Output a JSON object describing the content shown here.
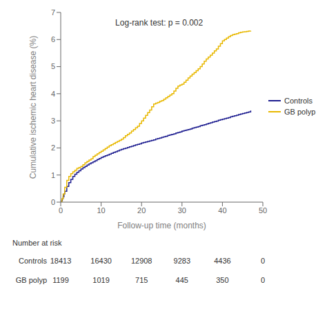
{
  "chart_data": {
    "type": "step",
    "annotation": "Log-rank test: p = 0.002",
    "xlabel": "Follow-up time (months)",
    "ylabel": "Cumulative ischemic heart disease (%)",
    "xlim": [
      0,
      50
    ],
    "ylim": [
      0,
      7
    ],
    "xticks": [
      0,
      10,
      20,
      30,
      40,
      50
    ],
    "yticks": [
      0,
      1,
      2,
      3,
      4,
      5,
      6,
      7
    ],
    "grid": false,
    "legend": "right",
    "series": [
      {
        "name": "Controls",
        "color": "#1c1c8f",
        "x": [
          0,
          0.2,
          0.4,
          0.6,
          0.8,
          1.0,
          1.5,
          2.0,
          2.5,
          3.0,
          3.5,
          4.0,
          4.5,
          5.0,
          5.5,
          6.0,
          6.5,
          7.0,
          7.5,
          8.0,
          8.5,
          9.0,
          9.5,
          10.0,
          10.5,
          11.0,
          11.5,
          12.0,
          12.5,
          13.0,
          13.5,
          14.0,
          14.5,
          15.0,
          15.5,
          16.0,
          16.5,
          17.0,
          17.5,
          18.0,
          18.5,
          19.0,
          19.5,
          20.0,
          20.5,
          21.0,
          21.5,
          22.0,
          22.5,
          23.0,
          23.5,
          24.0,
          24.5,
          25.0,
          25.5,
          26.0,
          26.5,
          27.0,
          27.5,
          28.0,
          28.5,
          29.0,
          29.5,
          30.0,
          30.5,
          31.0,
          31.5,
          32.0,
          32.5,
          33.0,
          33.5,
          34.0,
          34.5,
          35.0,
          35.5,
          36.0,
          36.5,
          37.0,
          37.5,
          38.0,
          38.5,
          39.0,
          39.5,
          40.0,
          40.5,
          41.0,
          41.5,
          42.0,
          42.5,
          43.0,
          43.5,
          44.0,
          44.5,
          45.0,
          45.5,
          46.0,
          46.5,
          47.0
        ],
        "values": [
          0,
          0.05,
          0.12,
          0.2,
          0.3,
          0.4,
          0.58,
          0.72,
          0.84,
          0.95,
          1.03,
          1.1,
          1.16,
          1.22,
          1.27,
          1.32,
          1.37,
          1.41,
          1.45,
          1.49,
          1.53,
          1.57,
          1.61,
          1.65,
          1.68,
          1.71,
          1.74,
          1.77,
          1.8,
          1.83,
          1.86,
          1.89,
          1.92,
          1.95,
          1.97,
          1.99,
          2.02,
          2.04,
          2.06,
          2.09,
          2.11,
          2.13,
          2.15,
          2.18,
          2.2,
          2.22,
          2.24,
          2.26,
          2.28,
          2.3,
          2.33,
          2.35,
          2.37,
          2.39,
          2.41,
          2.43,
          2.46,
          2.48,
          2.5,
          2.52,
          2.55,
          2.57,
          2.59,
          2.62,
          2.64,
          2.66,
          2.68,
          2.7,
          2.73,
          2.75,
          2.77,
          2.79,
          2.82,
          2.84,
          2.86,
          2.88,
          2.91,
          2.93,
          2.95,
          2.97,
          2.99,
          3.02,
          3.04,
          3.06,
          3.08,
          3.1,
          3.12,
          3.15,
          3.17,
          3.19,
          3.21,
          3.23,
          3.25,
          3.27,
          3.29,
          3.31,
          3.33,
          3.38
        ]
      },
      {
        "name": "GB polyp",
        "color": "#e8b800",
        "x": [
          0,
          0.3,
          0.6,
          1.0,
          1.5,
          2.0,
          2.5,
          3.0,
          3.5,
          4.0,
          4.5,
          5.0,
          5.5,
          6.0,
          6.5,
          7.0,
          7.5,
          8.0,
          8.5,
          9.0,
          9.5,
          10.0,
          10.5,
          11.0,
          11.5,
          12.0,
          12.5,
          13.0,
          13.5,
          14.0,
          14.5,
          15.0,
          15.5,
          16.0,
          16.5,
          17.0,
          17.5,
          18.0,
          18.5,
          19.0,
          19.5,
          20.0,
          20.5,
          21.0,
          21.5,
          22.0,
          22.5,
          23.0,
          23.5,
          24.0,
          24.5,
          25.0,
          25.5,
          26.0,
          26.5,
          27.0,
          27.5,
          28.0,
          28.5,
          29.0,
          29.5,
          30.0,
          30.5,
          31.0,
          31.5,
          32.0,
          32.5,
          33.0,
          33.5,
          34.0,
          34.5,
          35.0,
          35.5,
          36.0,
          36.5,
          37.0,
          37.5,
          38.0,
          38.5,
          39.0,
          39.5,
          40.0,
          40.5,
          41.0,
          41.5,
          42.0,
          42.5,
          43.0,
          43.5,
          44.0,
          44.5,
          45.0,
          45.5,
          46.0,
          46.5,
          47.0
        ],
        "values": [
          0,
          0.12,
          0.3,
          0.55,
          0.8,
          0.95,
          1.05,
          1.12,
          1.18,
          1.25,
          1.28,
          1.32,
          1.38,
          1.45,
          1.5,
          1.55,
          1.6,
          1.68,
          1.73,
          1.78,
          1.83,
          1.88,
          1.93,
          1.98,
          2.03,
          2.08,
          2.12,
          2.16,
          2.2,
          2.24,
          2.28,
          2.32,
          2.38,
          2.45,
          2.5,
          2.55,
          2.62,
          2.68,
          2.74,
          2.8,
          2.9,
          3.0,
          3.1,
          3.2,
          3.3,
          3.4,
          3.52,
          3.62,
          3.65,
          3.68,
          3.72,
          3.75,
          3.8,
          3.85,
          3.9,
          3.95,
          4.0,
          4.1,
          4.2,
          4.28,
          4.32,
          4.35,
          4.42,
          4.5,
          4.58,
          4.65,
          4.72,
          4.78,
          4.85,
          4.92,
          5.0,
          5.1,
          5.2,
          5.28,
          5.35,
          5.42,
          5.5,
          5.58,
          5.65,
          5.75,
          5.85,
          5.95,
          6.0,
          6.05,
          6.1,
          6.15,
          6.18,
          6.2,
          6.22,
          6.25,
          6.27,
          6.28,
          6.29,
          6.3,
          6.31,
          6.32
        ]
      }
    ],
    "risk_table": {
      "title": "Number at risk",
      "x": [
        0,
        10,
        20,
        30,
        40,
        50
      ],
      "rows": [
        {
          "name": "Controls",
          "values": [
            18413,
            16430,
            12908,
            9283,
            4436,
            0
          ]
        },
        {
          "name": "GB polyp",
          "values": [
            1199,
            1019,
            715,
            445,
            350,
            0
          ]
        }
      ]
    }
  }
}
